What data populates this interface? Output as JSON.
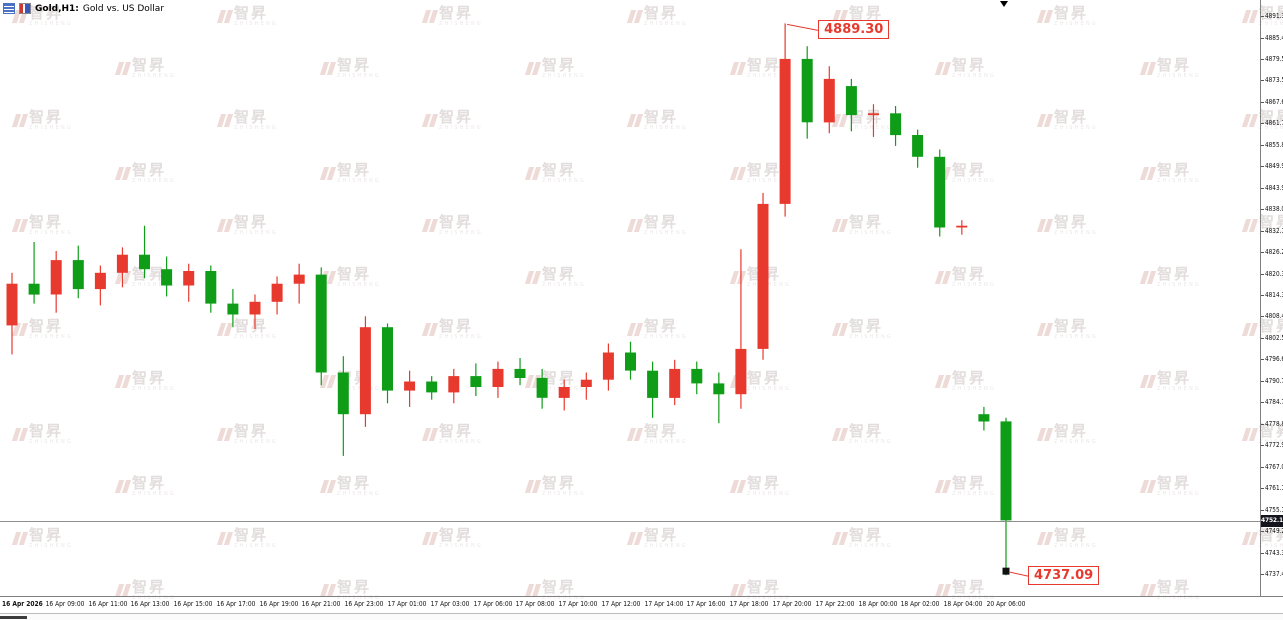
{
  "header": {
    "symbol_period": "Gold,H1:",
    "description": "Gold vs. US Dollar"
  },
  "watermark": {
    "brand_cn": "智昇",
    "brand_en": "ZHISHENG"
  },
  "chart_data": {
    "type": "candlestick",
    "title": "Gold, H1 — Gold vs. US Dollar",
    "symbol": "Gold",
    "timeframe": "H1",
    "price_axis": {
      "step": 5.92,
      "labels": [
        "4891.34",
        "4885.42",
        "4879.50",
        "4873.58",
        "4867.66",
        "4861.74",
        "4855.82",
        "4849.90",
        "4843.98",
        "4838.06",
        "4832.14",
        "4826.22",
        "4820.30",
        "4814.38",
        "4808.46",
        "4802.54",
        "4796.62",
        "4790.70",
        "4784.78",
        "4778.86",
        "4772.94",
        "4767.02",
        "4761.10",
        "4755.18",
        "4749.26",
        "4743.34",
        "4737.42"
      ]
    },
    "time_axis": {
      "labels": [
        "16 Apr 2026",
        "16 Apr 09:00",
        "16 Apr 11:00",
        "16 Apr 13:00",
        "16 Apr 15:00",
        "16 Apr 17:00",
        "16 Apr 19:00",
        "16 Apr 21:00",
        "16 Apr 23:00",
        "17 Apr 01:00",
        "17 Apr 03:00",
        "17 Apr 06:00",
        "17 Apr 08:00",
        "17 Apr 10:00",
        "17 Apr 12:00",
        "17 Apr 14:00",
        "17 Apr 16:00",
        "17 Apr 18:00",
        "17 Apr 20:00",
        "17 Apr 22:00",
        "18 Apr 00:00",
        "18 Apr 02:00",
        "18 Apr 04:00",
        "20 Apr 06:00"
      ]
    },
    "candles": [
      {
        "t": "16 Apr 08:00",
        "o": 4806.0,
        "h": 4820.5,
        "l": 4798.0,
        "c": 4817.5
      },
      {
        "t": "16 Apr 09:00",
        "o": 4817.5,
        "h": 4829.0,
        "l": 4812.0,
        "c": 4814.5
      },
      {
        "t": "16 Apr 10:00",
        "o": 4814.5,
        "h": 4826.5,
        "l": 4809.5,
        "c": 4824.0
      },
      {
        "t": "16 Apr 11:00",
        "o": 4824.0,
        "h": 4828.0,
        "l": 4813.5,
        "c": 4816.0
      },
      {
        "t": "16 Apr 12:00",
        "o": 4816.0,
        "h": 4822.5,
        "l": 4811.5,
        "c": 4820.5
      },
      {
        "t": "16 Apr 13:00",
        "o": 4820.5,
        "h": 4827.5,
        "l": 4816.5,
        "c": 4825.5
      },
      {
        "t": "16 Apr 14:00",
        "o": 4825.5,
        "h": 4833.5,
        "l": 4819.0,
        "c": 4821.5
      },
      {
        "t": "16 Apr 15:00",
        "o": 4821.5,
        "h": 4825.0,
        "l": 4814.0,
        "c": 4817.0
      },
      {
        "t": "16 Apr 16:00",
        "o": 4817.0,
        "h": 4823.0,
        "l": 4812.5,
        "c": 4821.0
      },
      {
        "t": "16 Apr 17:00",
        "o": 4821.0,
        "h": 4822.5,
        "l": 4809.5,
        "c": 4812.0
      },
      {
        "t": "16 Apr 18:00",
        "o": 4812.0,
        "h": 4816.0,
        "l": 4805.5,
        "c": 4809.0
      },
      {
        "t": "16 Apr 19:00",
        "o": 4809.0,
        "h": 4814.5,
        "l": 4805.0,
        "c": 4812.5
      },
      {
        "t": "16 Apr 20:00",
        "o": 4812.5,
        "h": 4819.5,
        "l": 4809.0,
        "c": 4817.5
      },
      {
        "t": "16 Apr 21:00",
        "o": 4817.5,
        "h": 4823.0,
        "l": 4812.0,
        "c": 4820.0
      },
      {
        "t": "16 Apr 22:00",
        "o": 4820.0,
        "h": 4822.0,
        "l": 4789.5,
        "c": 4793.0
      },
      {
        "t": "16 Apr 23:00",
        "o": 4793.0,
        "h": 4797.5,
        "l": 4770.0,
        "c": 4781.5
      },
      {
        "t": "17 Apr 00:00",
        "o": 4781.5,
        "h": 4808.5,
        "l": 4778.0,
        "c": 4805.5
      },
      {
        "t": "17 Apr 01:00",
        "o": 4805.5,
        "h": 4806.5,
        "l": 4784.5,
        "c": 4788.0
      },
      {
        "t": "17 Apr 02:00",
        "o": 4788.0,
        "h": 4793.5,
        "l": 4783.5,
        "c": 4790.5
      },
      {
        "t": "17 Apr 03:00",
        "o": 4790.5,
        "h": 4792.0,
        "l": 4785.5,
        "c": 4787.5
      },
      {
        "t": "17 Apr 05:00",
        "o": 4787.5,
        "h": 4794.0,
        "l": 4784.5,
        "c": 4792.0
      },
      {
        "t": "17 Apr 06:00",
        "o": 4792.0,
        "h": 4795.5,
        "l": 4786.5,
        "c": 4789.0
      },
      {
        "t": "17 Apr 07:00",
        "o": 4789.0,
        "h": 4796.0,
        "l": 4786.0,
        "c": 4794.0
      },
      {
        "t": "17 Apr 08:00",
        "o": 4794.0,
        "h": 4797.0,
        "l": 4789.5,
        "c": 4791.5
      },
      {
        "t": "17 Apr 09:00",
        "o": 4791.5,
        "h": 4794.0,
        "l": 4783.0,
        "c": 4786.0
      },
      {
        "t": "17 Apr 10:00",
        "o": 4786.0,
        "h": 4791.0,
        "l": 4782.5,
        "c": 4789.0
      },
      {
        "t": "17 Apr 11:00",
        "o": 4789.0,
        "h": 4793.0,
        "l": 4785.5,
        "c": 4791.0
      },
      {
        "t": "17 Apr 12:00",
        "o": 4791.0,
        "h": 4801.0,
        "l": 4788.0,
        "c": 4798.5
      },
      {
        "t": "17 Apr 13:00",
        "o": 4798.5,
        "h": 4801.5,
        "l": 4791.0,
        "c": 4793.5
      },
      {
        "t": "17 Apr 14:00",
        "o": 4793.5,
        "h": 4796.0,
        "l": 4780.5,
        "c": 4786.0
      },
      {
        "t": "17 Apr 15:00",
        "o": 4786.0,
        "h": 4796.5,
        "l": 4784.0,
        "c": 4794.0
      },
      {
        "t": "17 Apr 16:00",
        "o": 4794.0,
        "h": 4796.0,
        "l": 4787.0,
        "c": 4790.0
      },
      {
        "t": "17 Apr 17:00",
        "o": 4790.0,
        "h": 4793.0,
        "l": 4779.0,
        "c": 4787.0
      },
      {
        "t": "17 Apr 18:00",
        "o": 4787.0,
        "h": 4827.0,
        "l": 4783.0,
        "c": 4799.5
      },
      {
        "t": "17 Apr 19:00",
        "o": 4799.5,
        "h": 4842.5,
        "l": 4796.5,
        "c": 4839.5
      },
      {
        "t": "17 Apr 20:00",
        "o": 4839.5,
        "h": 4889.3,
        "l": 4836.0,
        "c": 4879.5
      },
      {
        "t": "17 Apr 21:00",
        "o": 4879.5,
        "h": 4883.0,
        "l": 4857.5,
        "c": 4862.0
      },
      {
        "t": "17 Apr 22:00",
        "o": 4862.0,
        "h": 4877.5,
        "l": 4859.0,
        "c": 4874.0
      },
      {
        "t": "17 Apr 23:00",
        "o": 4872.0,
        "h": 4874.0,
        "l": 4859.5,
        "c": 4864.0
      },
      {
        "t": "18 Apr 00:00",
        "o": 4864.0,
        "h": 4867.0,
        "l": 4858.0,
        "c": 4864.5
      },
      {
        "t": "18 Apr 01:00",
        "o": 4864.5,
        "h": 4866.5,
        "l": 4855.5,
        "c": 4858.5
      },
      {
        "t": "18 Apr 02:00",
        "o": 4858.5,
        "h": 4860.0,
        "l": 4849.5,
        "c": 4852.5
      },
      {
        "t": "18 Apr 03:00",
        "o": 4852.5,
        "h": 4854.5,
        "l": 4830.5,
        "c": 4833.0
      },
      {
        "t": "18 Apr 04:00",
        "o": 4833.0,
        "h": 4835.0,
        "l": 4831.0,
        "c": 4833.5
      },
      {
        "t": "20 Apr 05:00",
        "o": 4781.5,
        "h": 4783.5,
        "l": 4777.0,
        "c": 4779.5
      },
      {
        "t": "20 Apr 06:00",
        "o": 4779.5,
        "h": 4780.5,
        "l": 4737.09,
        "c": 4752.18
      }
    ],
    "annotations": {
      "high": {
        "text": "4889.30",
        "candle_index": 35
      },
      "low": {
        "text": "4737.09",
        "candle_index": 45
      },
      "current_price": "4752.18"
    },
    "colors": {
      "up": "#e8392e",
      "down": "#0f9d18",
      "annotation": "#e8392e",
      "current_price_line": "#8f8f8f"
    },
    "legend_position": "none",
    "grid": false
  }
}
